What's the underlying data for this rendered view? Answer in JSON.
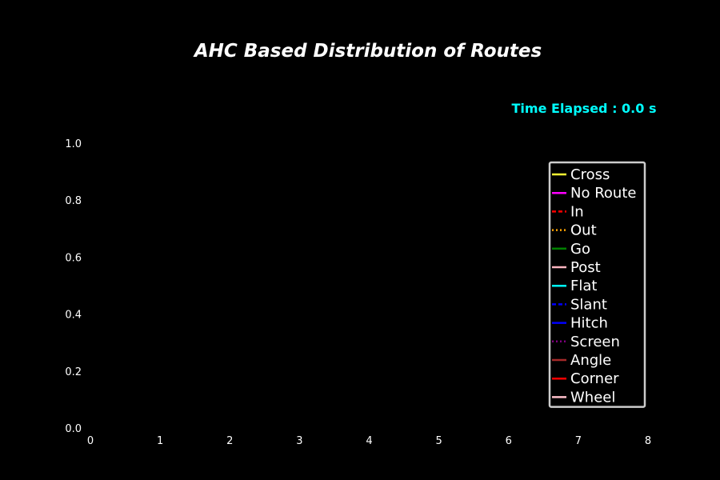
{
  "chart_data": {
    "type": "line",
    "title": "AHC Based Distribution of Routes",
    "annotation": "Time Elapsed : 0.0 s",
    "xlabel": "",
    "ylabel": "",
    "xlim": [
      0,
      8
    ],
    "ylim": [
      0,
      1
    ],
    "x_ticks": [
      "0",
      "1",
      "2",
      "3",
      "4",
      "5",
      "6",
      "7",
      "8"
    ],
    "y_ticks": [
      "0.0",
      "0.2",
      "0.4",
      "0.6",
      "0.8",
      "1.0"
    ],
    "grid": false,
    "legend_position": "right",
    "series": [
      {
        "name": "Cross",
        "color": "#ffff33",
        "style": "solid",
        "values": []
      },
      {
        "name": "No Route",
        "color": "#ff00ff",
        "style": "solid",
        "values": []
      },
      {
        "name": "In",
        "color": "#ff0000",
        "style": "dashed",
        "values": []
      },
      {
        "name": "Out",
        "color": "#ffa500",
        "style": "dotted",
        "values": []
      },
      {
        "name": "Go",
        "color": "#008000",
        "style": "solid",
        "values": []
      },
      {
        "name": "Post",
        "color": "#ffb6c1",
        "style": "solid",
        "values": []
      },
      {
        "name": "Flat",
        "color": "#00ffff",
        "style": "solid",
        "values": []
      },
      {
        "name": "Slant",
        "color": "#0000ff",
        "style": "dashed",
        "values": []
      },
      {
        "name": "Hitch",
        "color": "#0000ff",
        "style": "solid",
        "values": []
      },
      {
        "name": "Screen",
        "color": "#800080",
        "style": "dotted",
        "values": []
      },
      {
        "name": "Angle",
        "color": "#a52a2a",
        "style": "solid",
        "values": []
      },
      {
        "name": "Corner",
        "color": "#ff0000",
        "style": "solid",
        "values": []
      },
      {
        "name": "Wheel",
        "color": "#ffc0cb",
        "style": "solid",
        "values": []
      }
    ],
    "colors": {
      "background": "#000000",
      "text": "#ffffff",
      "annotation": "#00ffff",
      "legend_border": "#cccccc"
    }
  }
}
